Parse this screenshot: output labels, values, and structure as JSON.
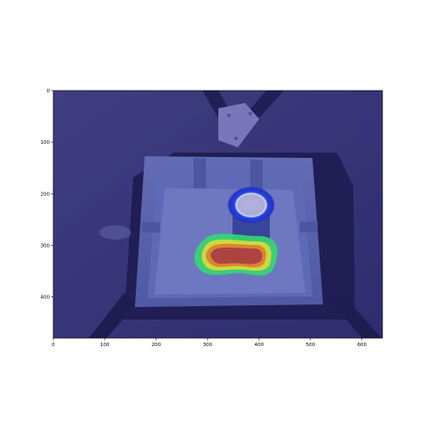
{
  "figure": {
    "x_ticks": [
      0,
      100,
      200,
      300,
      400,
      500,
      600
    ],
    "y_ticks": [
      0,
      100,
      200,
      300,
      400
    ],
    "x_range": [
      0,
      640
    ],
    "y_range": [
      0,
      480
    ],
    "y_inverted": true,
    "colormap": "jet",
    "overlay_color": "#2a2aa0"
  },
  "scene": {
    "heatmap_hotspot": {
      "shape": "rounded-blob",
      "peak_color": "#d0452a",
      "edge_color": "#37ff60"
    },
    "secondary_hotspot": {
      "shape": "ring",
      "color": "#1f55ff"
    }
  }
}
